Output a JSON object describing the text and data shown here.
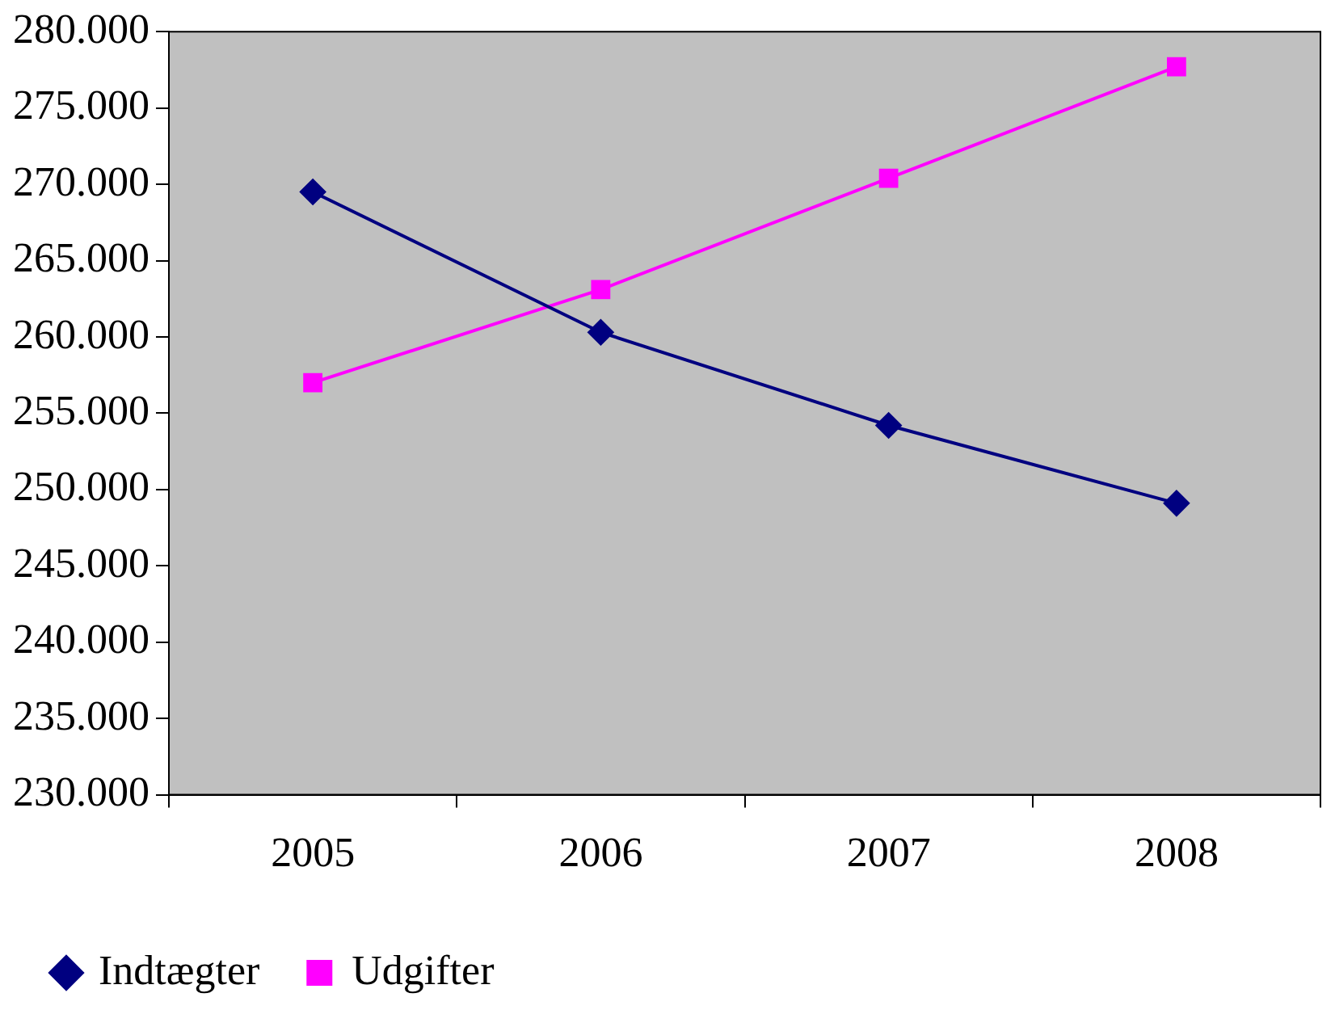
{
  "chart_data": {
    "type": "line",
    "categories": [
      "2005",
      "2006",
      "2007",
      "2008"
    ],
    "series": [
      {
        "name": "Indtægter",
        "color": "#000080",
        "marker": "diamond",
        "values": [
          269500,
          260300,
          254200,
          249100
        ]
      },
      {
        "name": "Udgifter",
        "color": "#ff00ff",
        "marker": "square",
        "values": [
          257000,
          263100,
          270400,
          277700
        ]
      }
    ],
    "ylim": [
      230000,
      280000
    ],
    "yticks": [
      {
        "value": 230000,
        "label": "230.000"
      },
      {
        "value": 235000,
        "label": "235.000"
      },
      {
        "value": 240000,
        "label": "240.000"
      },
      {
        "value": 245000,
        "label": "245.000"
      },
      {
        "value": 250000,
        "label": "250.000"
      },
      {
        "value": 255000,
        "label": "255.000"
      },
      {
        "value": 260000,
        "label": "260.000"
      },
      {
        "value": 265000,
        "label": "265.000"
      },
      {
        "value": 270000,
        "label": "270.000"
      },
      {
        "value": 275000,
        "label": "275.000"
      },
      {
        "value": 280000,
        "label": "280.000"
      }
    ],
    "grid": false,
    "legend": "bottom left",
    "line_style": "solid"
  }
}
